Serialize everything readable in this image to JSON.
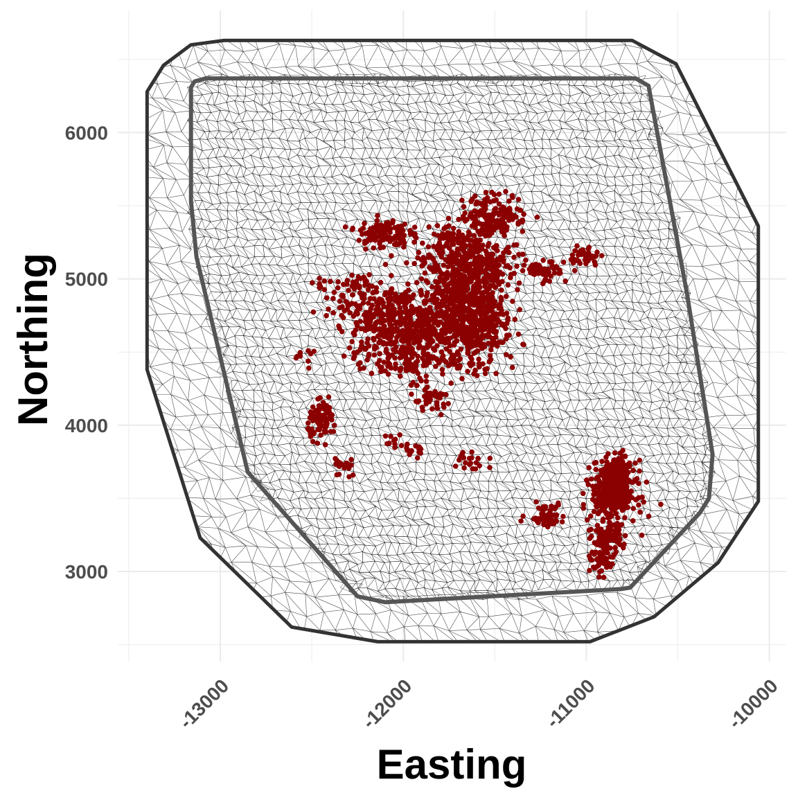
{
  "chart_data": {
    "type": "scatter",
    "title": "",
    "xlabel": "Easting",
    "ylabel": "Northing",
    "xlim": [
      -13500,
      -9900
    ],
    "ylim": [
      2350,
      6800
    ],
    "x_ticks": [
      -13000,
      -12000,
      -11000,
      -10000
    ],
    "x_tick_labels": [
      "-13000",
      "-12000",
      "-11000",
      "-10000"
    ],
    "y_ticks": [
      3000,
      4000,
      5000,
      6000
    ],
    "y_tick_labels": [
      "3000",
      "4000",
      "5000",
      "6000"
    ],
    "grid": true,
    "legend": "none",
    "colors": {
      "points": "#8b0000",
      "mesh": "#000000",
      "outer_boundary": "#333333",
      "inner_boundary": "#555555",
      "grid": "#ebebeb"
    },
    "outer_boundary": [
      [
        -13160,
        6600
      ],
      [
        -12980,
        6630
      ],
      [
        -10750,
        6630
      ],
      [
        -10510,
        6470
      ],
      [
        -10060,
        5360
      ],
      [
        -10060,
        3480
      ],
      [
        -10280,
        3060
      ],
      [
        -10630,
        2690
      ],
      [
        -10980,
        2520
      ],
      [
        -12140,
        2520
      ],
      [
        -12610,
        2620
      ],
      [
        -13110,
        3230
      ],
      [
        -13400,
        4380
      ],
      [
        -13400,
        6280
      ],
      [
        -13310,
        6460
      ]
    ],
    "inner_boundary": [
      [
        -13140,
        6350
      ],
      [
        -13080,
        6370
      ],
      [
        -10730,
        6370
      ],
      [
        -10660,
        6320
      ],
      [
        -10450,
        4900
      ],
      [
        -10310,
        3800
      ],
      [
        -10330,
        3500
      ],
      [
        -10380,
        3400
      ],
      [
        -10760,
        2890
      ],
      [
        -10810,
        2880
      ],
      [
        -12100,
        2790
      ],
      [
        -12250,
        2830
      ],
      [
        -12850,
        3680
      ],
      [
        -13130,
        5150
      ],
      [
        -13160,
        5530
      ],
      [
        -13160,
        6310
      ]
    ],
    "clusters": [
      {
        "cx": -11650,
        "cy": 4850,
        "sx": 100,
        "sy": 220,
        "n": 750
      },
      {
        "cx": -11990,
        "cy": 4700,
        "sx": 150,
        "sy": 130,
        "n": 420
      },
      {
        "cx": -12240,
        "cy": 4880,
        "sx": 90,
        "sy": 80,
        "n": 80
      },
      {
        "cx": -11980,
        "cy": 4450,
        "sx": 140,
        "sy": 70,
        "n": 120
      },
      {
        "cx": -11540,
        "cy": 4650,
        "sx": 60,
        "sy": 100,
        "n": 60
      },
      {
        "cx": -11620,
        "cy": 5120,
        "sx": 160,
        "sy": 90,
        "n": 150
      },
      {
        "cx": -11500,
        "cy": 5440,
        "sx": 90,
        "sy": 70,
        "n": 160
      },
      {
        "cx": -12110,
        "cy": 5310,
        "sx": 70,
        "sy": 50,
        "n": 120
      },
      {
        "cx": -11740,
        "cy": 5280,
        "sx": 50,
        "sy": 40,
        "n": 40
      },
      {
        "cx": -11230,
        "cy": 5040,
        "sx": 50,
        "sy": 40,
        "n": 40
      },
      {
        "cx": -11010,
        "cy": 5150,
        "sx": 40,
        "sy": 40,
        "n": 40
      },
      {
        "cx": -12440,
        "cy": 4030,
        "sx": 40,
        "sy": 60,
        "n": 80
      },
      {
        "cx": -11850,
        "cy": 4170,
        "sx": 60,
        "sy": 50,
        "n": 40
      },
      {
        "cx": -11950,
        "cy": 3820,
        "sx": 40,
        "sy": 30,
        "n": 15
      },
      {
        "cx": -11640,
        "cy": 3750,
        "sx": 50,
        "sy": 60,
        "n": 20
      },
      {
        "cx": -12320,
        "cy": 3720,
        "sx": 30,
        "sy": 40,
        "n": 20
      },
      {
        "cx": -11220,
        "cy": 3390,
        "sx": 50,
        "sy": 40,
        "n": 60
      },
      {
        "cx": -10850,
        "cy": 3550,
        "sx": 60,
        "sy": 100,
        "n": 400
      },
      {
        "cx": -10820,
        "cy": 3700,
        "sx": 30,
        "sy": 40,
        "n": 60
      },
      {
        "cx": -10890,
        "cy": 3220,
        "sx": 40,
        "sy": 50,
        "n": 100
      },
      {
        "cx": -10920,
        "cy": 3050,
        "sx": 30,
        "sy": 40,
        "n": 40
      },
      {
        "cx": -12050,
        "cy": 3900,
        "sx": 30,
        "sy": 30,
        "n": 10
      },
      {
        "cx": -12550,
        "cy": 4450,
        "sx": 30,
        "sy": 30,
        "n": 8
      },
      {
        "cx": -12450,
        "cy": 4950,
        "sx": 20,
        "sy": 20,
        "n": 5
      }
    ]
  }
}
